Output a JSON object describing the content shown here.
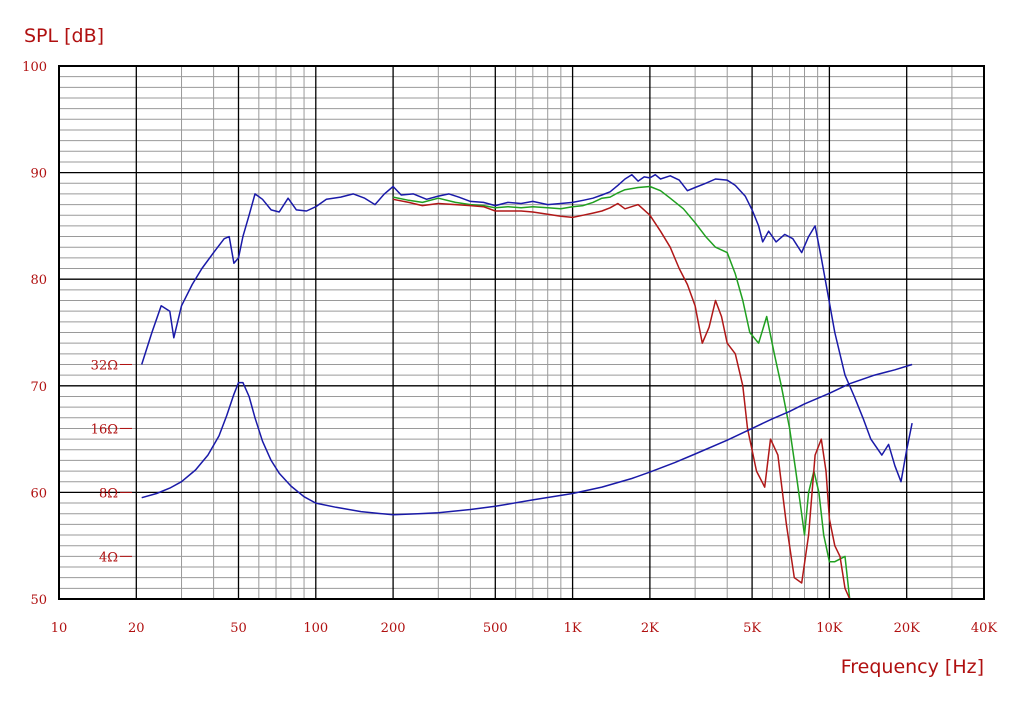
{
  "chart_data": {
    "type": "line",
    "ylabel": "SPL [dB]",
    "xlabel": "Frequency [Hz]",
    "x_scale": "log",
    "xlim": [
      10,
      40000
    ],
    "ylim": [
      50,
      100
    ],
    "grid": true,
    "x_ticks": [
      {
        "value": 10,
        "label": "10"
      },
      {
        "value": 20,
        "label": "20"
      },
      {
        "value": 50,
        "label": "50"
      },
      {
        "value": 100,
        "label": "100"
      },
      {
        "value": 200,
        "label": "200"
      },
      {
        "value": 500,
        "label": "500"
      },
      {
        "value": 1000,
        "label": "1K"
      },
      {
        "value": 2000,
        "label": "2K"
      },
      {
        "value": 5000,
        "label": "5K"
      },
      {
        "value": 10000,
        "label": "10K"
      },
      {
        "value": 20000,
        "label": "20K"
      },
      {
        "value": 40000,
        "label": "40K"
      }
    ],
    "y_ticks": [
      {
        "value": 50,
        "label": "50"
      },
      {
        "value": 60,
        "label": "60"
      },
      {
        "value": 70,
        "label": "70"
      },
      {
        "value": 80,
        "label": "80"
      },
      {
        "value": 90,
        "label": "90"
      },
      {
        "value": 100,
        "label": "100"
      }
    ],
    "impedance_ticks": [
      {
        "value": 54,
        "label": "4Ω"
      },
      {
        "value": 60,
        "label": "8Ω"
      },
      {
        "value": 66,
        "label": "16Ω"
      },
      {
        "value": 72,
        "label": "32Ω"
      }
    ],
    "series": [
      {
        "key": "spl-0deg",
        "color": "#1a1aa8",
        "points": [
          [
            21,
            72
          ],
          [
            23,
            75
          ],
          [
            25,
            77.5
          ],
          [
            27,
            77
          ],
          [
            28,
            74.5
          ],
          [
            30,
            77.5
          ],
          [
            33,
            79.5
          ],
          [
            36,
            81
          ],
          [
            40,
            82.5
          ],
          [
            44,
            83.8
          ],
          [
            46,
            84
          ],
          [
            48,
            81.5
          ],
          [
            50,
            82
          ],
          [
            52,
            84
          ],
          [
            55,
            86
          ],
          [
            58,
            88
          ],
          [
            62,
            87.5
          ],
          [
            67,
            86.5
          ],
          [
            72,
            86.3
          ],
          [
            78,
            87.6
          ],
          [
            84,
            86.5
          ],
          [
            92,
            86.4
          ],
          [
            100,
            86.8
          ],
          [
            110,
            87.5
          ],
          [
            125,
            87.7
          ],
          [
            140,
            88
          ],
          [
            155,
            87.6
          ],
          [
            170,
            87
          ],
          [
            185,
            88
          ],
          [
            200,
            88.7
          ],
          [
            215,
            87.9
          ],
          [
            240,
            88
          ],
          [
            270,
            87.5
          ],
          [
            300,
            87.8
          ],
          [
            330,
            88
          ],
          [
            360,
            87.7
          ],
          [
            400,
            87.3
          ],
          [
            450,
            87.2
          ],
          [
            500,
            86.9
          ],
          [
            560,
            87.2
          ],
          [
            630,
            87.1
          ],
          [
            700,
            87.3
          ],
          [
            800,
            87
          ],
          [
            900,
            87.1
          ],
          [
            1000,
            87.2
          ],
          [
            1100,
            87.4
          ],
          [
            1200,
            87.6
          ],
          [
            1300,
            87.9
          ],
          [
            1400,
            88.2
          ],
          [
            1500,
            88.8
          ],
          [
            1600,
            89.4
          ],
          [
            1700,
            89.8
          ],
          [
            1800,
            89.2
          ],
          [
            1900,
            89.6
          ],
          [
            2000,
            89.5
          ],
          [
            2100,
            89.8
          ],
          [
            2200,
            89.4
          ],
          [
            2400,
            89.7
          ],
          [
            2600,
            89.3
          ],
          [
            2800,
            88.3
          ],
          [
            3000,
            88.6
          ],
          [
            3300,
            89
          ],
          [
            3600,
            89.4
          ],
          [
            4000,
            89.3
          ],
          [
            4300,
            88.8
          ],
          [
            4700,
            87.8
          ],
          [
            5000,
            86.5
          ],
          [
            5300,
            85
          ],
          [
            5500,
            83.5
          ],
          [
            5800,
            84.5
          ],
          [
            6200,
            83.5
          ],
          [
            6700,
            84.2
          ],
          [
            7200,
            83.8
          ],
          [
            7800,
            82.5
          ],
          [
            8300,
            84
          ],
          [
            8800,
            85
          ],
          [
            9300,
            82
          ],
          [
            9800,
            79
          ],
          [
            10500,
            75
          ],
          [
            11500,
            71
          ],
          [
            12500,
            69
          ],
          [
            13500,
            67
          ],
          [
            14500,
            65
          ],
          [
            16000,
            63.5
          ],
          [
            17000,
            64.5
          ],
          [
            18000,
            62.5
          ],
          [
            19000,
            61
          ],
          [
            20000,
            64
          ],
          [
            21000,
            66.5
          ]
        ]
      },
      {
        "key": "spl-30deg",
        "color": "#20a020",
        "points": [
          [
            200,
            87.7
          ],
          [
            230,
            87.4
          ],
          [
            260,
            87.2
          ],
          [
            300,
            87.6
          ],
          [
            350,
            87.2
          ],
          [
            400,
            87
          ],
          [
            450,
            86.9
          ],
          [
            500,
            86.7
          ],
          [
            560,
            86.8
          ],
          [
            630,
            86.7
          ],
          [
            700,
            86.8
          ],
          [
            800,
            86.7
          ],
          [
            900,
            86.6
          ],
          [
            1000,
            86.8
          ],
          [
            1100,
            86.9
          ],
          [
            1200,
            87.2
          ],
          [
            1300,
            87.6
          ],
          [
            1400,
            87.7
          ],
          [
            1500,
            88.1
          ],
          [
            1600,
            88.4
          ],
          [
            1800,
            88.6
          ],
          [
            2000,
            88.7
          ],
          [
            2200,
            88.3
          ],
          [
            2400,
            87.6
          ],
          [
            2700,
            86.6
          ],
          [
            3000,
            85.3
          ],
          [
            3300,
            84
          ],
          [
            3600,
            83
          ],
          [
            4000,
            82.5
          ],
          [
            4300,
            80.5
          ],
          [
            4600,
            78
          ],
          [
            4900,
            75
          ],
          [
            5300,
            74
          ],
          [
            5700,
            76.5
          ],
          [
            6100,
            73
          ],
          [
            6500,
            70
          ],
          [
            7000,
            66
          ],
          [
            7400,
            62
          ],
          [
            7700,
            59
          ],
          [
            8000,
            56
          ],
          [
            8300,
            60
          ],
          [
            8700,
            62
          ],
          [
            9100,
            60
          ],
          [
            9500,
            56
          ],
          [
            10000,
            53.5
          ],
          [
            10500,
            53.5
          ],
          [
            11500,
            54
          ],
          [
            12000,
            50
          ]
        ]
      },
      {
        "key": "spl-60deg",
        "color": "#b01818",
        "points": [
          [
            200,
            87.5
          ],
          [
            230,
            87.2
          ],
          [
            260,
            86.9
          ],
          [
            300,
            87.1
          ],
          [
            350,
            87
          ],
          [
            400,
            86.9
          ],
          [
            450,
            86.8
          ],
          [
            500,
            86.4
          ],
          [
            560,
            86.4
          ],
          [
            630,
            86.4
          ],
          [
            700,
            86.3
          ],
          [
            800,
            86.1
          ],
          [
            900,
            85.9
          ],
          [
            1000,
            85.8
          ],
          [
            1100,
            86
          ],
          [
            1200,
            86.2
          ],
          [
            1300,
            86.4
          ],
          [
            1400,
            86.7
          ],
          [
            1500,
            87.1
          ],
          [
            1600,
            86.6
          ],
          [
            1800,
            87
          ],
          [
            2000,
            86
          ],
          [
            2200,
            84.5
          ],
          [
            2400,
            83
          ],
          [
            2600,
            81
          ],
          [
            2800,
            79.5
          ],
          [
            3000,
            77.5
          ],
          [
            3200,
            74
          ],
          [
            3400,
            75.5
          ],
          [
            3600,
            78
          ],
          [
            3800,
            76.5
          ],
          [
            4000,
            74
          ],
          [
            4300,
            73
          ],
          [
            4600,
            70
          ],
          [
            4800,
            66
          ],
          [
            5200,
            62
          ],
          [
            5600,
            60.5
          ],
          [
            5900,
            65
          ],
          [
            6300,
            63.5
          ],
          [
            6800,
            57
          ],
          [
            7300,
            52
          ],
          [
            7800,
            51.5
          ],
          [
            8300,
            56
          ],
          [
            8800,
            63.5
          ],
          [
            9300,
            65
          ],
          [
            9700,
            62
          ],
          [
            10000,
            57.5
          ],
          [
            10500,
            55
          ],
          [
            11000,
            54
          ],
          [
            11500,
            51
          ],
          [
            12000,
            49.5
          ]
        ]
      },
      {
        "key": "impedance",
        "color": "#1a1aa8",
        "points": [
          [
            21,
            59.5
          ],
          [
            24,
            59.9
          ],
          [
            27,
            60.4
          ],
          [
            30,
            61
          ],
          [
            34,
            62.1
          ],
          [
            38,
            63.5
          ],
          [
            42,
            65.3
          ],
          [
            45,
            67.2
          ],
          [
            48,
            69.2
          ],
          [
            50,
            70.3
          ],
          [
            52,
            70.3
          ],
          [
            55,
            69
          ],
          [
            58,
            67
          ],
          [
            62,
            64.8
          ],
          [
            67,
            63
          ],
          [
            72,
            61.8
          ],
          [
            80,
            60.6
          ],
          [
            90,
            59.6
          ],
          [
            100,
            59
          ],
          [
            120,
            58.6
          ],
          [
            150,
            58.2
          ],
          [
            200,
            57.9
          ],
          [
            250,
            58
          ],
          [
            300,
            58.1
          ],
          [
            400,
            58.4
          ],
          [
            500,
            58.7
          ],
          [
            700,
            59.3
          ],
          [
            1000,
            59.9
          ],
          [
            1300,
            60.5
          ],
          [
            1700,
            61.3
          ],
          [
            2000,
            61.9
          ],
          [
            2500,
            62.8
          ],
          [
            3000,
            63.6
          ],
          [
            4000,
            64.9
          ],
          [
            5000,
            66
          ],
          [
            6000,
            66.9
          ],
          [
            7000,
            67.6
          ],
          [
            8000,
            68.3
          ],
          [
            10000,
            69.3
          ],
          [
            12000,
            70.2
          ],
          [
            15000,
            71
          ],
          [
            18000,
            71.5
          ],
          [
            21000,
            72
          ]
        ]
      }
    ]
  }
}
